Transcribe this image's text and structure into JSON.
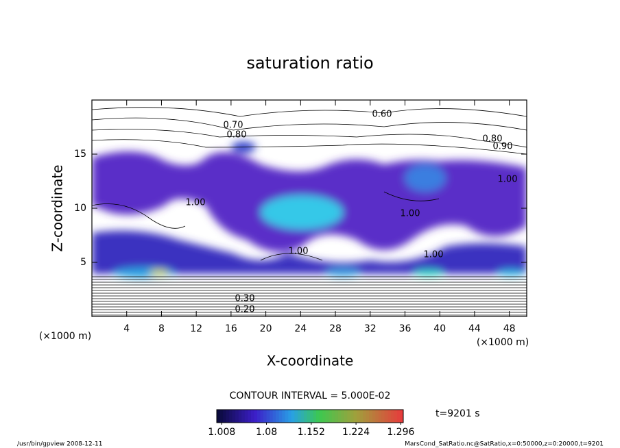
{
  "chart_data": {
    "type": "contour",
    "title": "saturation ratio",
    "xlabel": "X-coordinate",
    "ylabel": "Z-coordinate",
    "xunit": "(×1000 m)",
    "xlim": [
      0,
      50
    ],
    "xticks": [
      4,
      8,
      12,
      16,
      20,
      24,
      28,
      32,
      36,
      40,
      44,
      48
    ],
    "ylim": [
      0,
      20
    ],
    "yticks": [
      5,
      10,
      15
    ],
    "contour_labels": [
      "0.60",
      "0.70",
      "0.80",
      "0.80",
      "0.90",
      "1.00",
      "1.00",
      "1.00",
      "1.00",
      "1.00",
      "0.20",
      "0.30"
    ],
    "contour_interval": "CONTOUR INTERVAL = 5.000E-02",
    "clim": [
      1.0,
      1.3
    ],
    "cticks": [
      1.008,
      1.08,
      1.152,
      1.224,
      1.296
    ],
    "time": "t=9201 s",
    "footer_left": "/usr/bin/gpview   2008-12-11",
    "footer_right": "MarsCond_SatRatio.nc@SatRatio,x=0:50000,z=0:20000,t=9201"
  }
}
